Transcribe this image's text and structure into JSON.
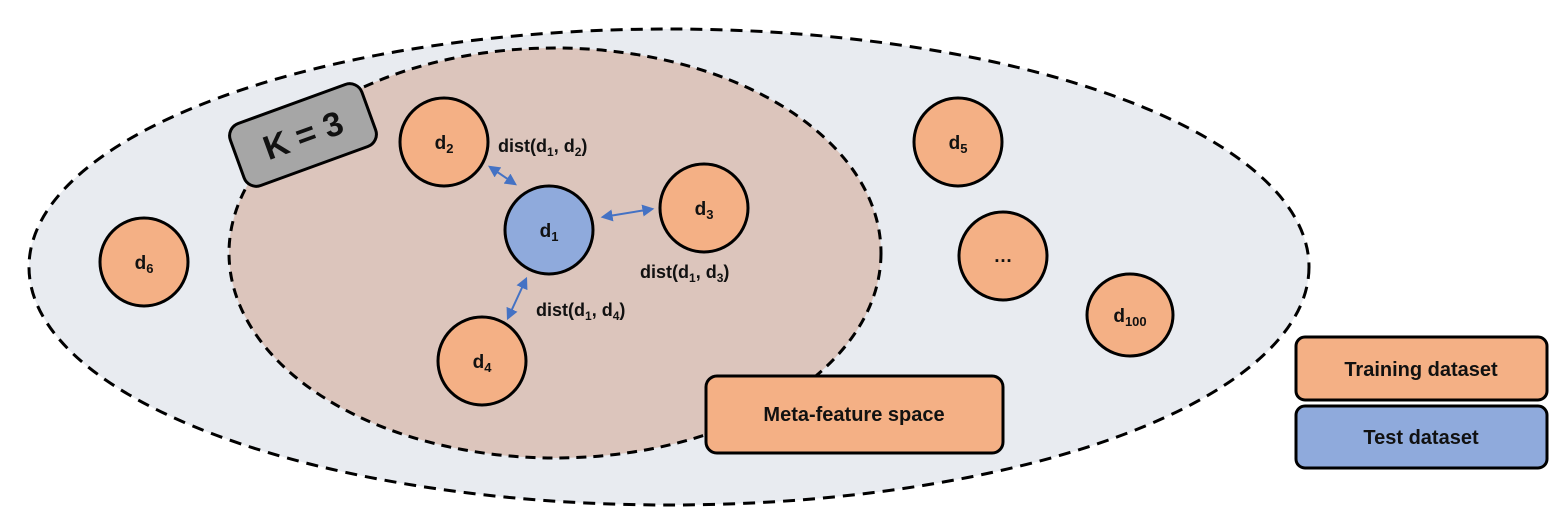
{
  "colors": {
    "outer_fill": "#e8ebf0",
    "inner_fill": "#dcc5bc",
    "training_fill": "#f4b085",
    "test_fill": "#8faadc",
    "k_box_fill": "#a6a6a6",
    "arrow": "#4472c4",
    "stroke": "#000000"
  },
  "k_label": "K = 3",
  "meta_feature_label": "Meta-feature space",
  "nodes": [
    {
      "id": "d1",
      "base": "d",
      "sub": "1",
      "role": "test"
    },
    {
      "id": "d2",
      "base": "d",
      "sub": "2",
      "role": "training"
    },
    {
      "id": "d3",
      "base": "d",
      "sub": "3",
      "role": "training"
    },
    {
      "id": "d4",
      "base": "d",
      "sub": "4",
      "role": "training"
    },
    {
      "id": "d5",
      "base": "d",
      "sub": "5",
      "role": "training"
    },
    {
      "id": "d6",
      "base": "d",
      "sub": "6",
      "role": "training"
    },
    {
      "id": "ellipsis",
      "base": "…",
      "sub": "",
      "role": "training"
    },
    {
      "id": "d100",
      "base": "d",
      "sub": "100",
      "role": "training"
    }
  ],
  "distances": [
    {
      "id": "d1-d2",
      "prefix": "dist(d",
      "a": "1",
      "mid": ", d",
      "b": "2",
      "suffix": ")"
    },
    {
      "id": "d1-d3",
      "prefix": "dist(d",
      "a": "1",
      "mid": ", d",
      "b": "3",
      "suffix": ")"
    },
    {
      "id": "d1-d4",
      "prefix": "dist(d",
      "a": "1",
      "mid": ", d",
      "b": "4",
      "suffix": ")"
    }
  ],
  "legend": {
    "training_label": "Training dataset",
    "test_label": "Test dataset"
  }
}
